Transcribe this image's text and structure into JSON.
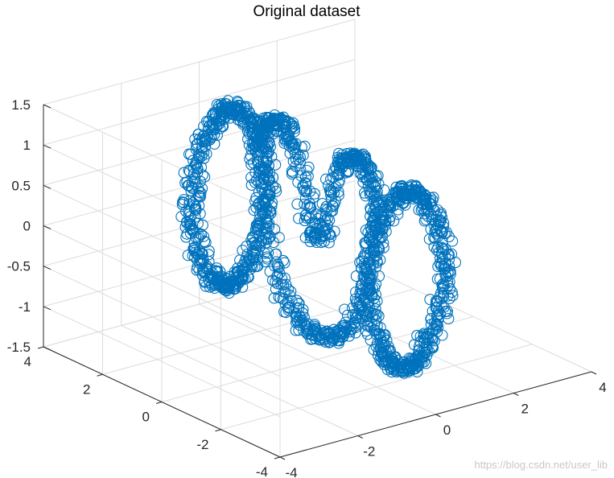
{
  "chart_data": {
    "type": "scatter",
    "title": "Original dataset",
    "marker": "open-circle",
    "color": "#0072BD",
    "xlim": [
      -4,
      4
    ],
    "ylim": [
      -4,
      4
    ],
    "zlim": [
      -1.5,
      1.5
    ],
    "x_ticks": [
      "-4",
      "-2",
      "0",
      "2",
      "4"
    ],
    "y_ticks": [
      "4",
      "2",
      "0",
      "-2",
      "-4"
    ],
    "z_ticks": [
      "1.5",
      "1",
      "0.5",
      "0",
      "-0.5",
      "-1",
      "-1.5"
    ],
    "grid": true,
    "series": [
      {
        "shape": "ring",
        "plane": "y",
        "points": [
          [
            -1.0,
            -3.0,
            0.0
          ],
          [
            -0.6,
            -3.0,
            0.8
          ],
          [
            0.0,
            -3.0,
            1.1
          ],
          [
            0.6,
            -3.0,
            0.8
          ],
          [
            1.0,
            -3.0,
            0.0
          ],
          [
            0.6,
            -3.0,
            -0.8
          ],
          [
            0.0,
            -3.0,
            -1.1
          ],
          [
            -0.6,
            -3.0,
            -0.8
          ]
        ]
      },
      {
        "shape": "ring",
        "plane": "y",
        "points": [
          [
            -1.0,
            3.0,
            0.0
          ],
          [
            -0.6,
            3.0,
            0.8
          ],
          [
            0.0,
            3.0,
            1.1
          ],
          [
            0.6,
            3.0,
            0.8
          ],
          [
            1.0,
            3.0,
            0.0
          ],
          [
            0.6,
            3.0,
            -0.8
          ],
          [
            0.0,
            3.0,
            -1.1
          ],
          [
            -0.6,
            3.0,
            -0.8
          ]
        ]
      },
      {
        "shape": "figure-eight",
        "plane": "x",
        "points": [
          [
            0.0,
            0.0,
            0.0
          ],
          [
            0.0,
            0.8,
            1.0
          ],
          [
            0.0,
            1.5,
            1.2
          ],
          [
            0.0,
            2.0,
            0.6
          ],
          [
            0.0,
            1.2,
            -0.8
          ],
          [
            0.0,
            0.0,
            -1.2
          ],
          [
            0.0,
            -1.2,
            -0.8
          ],
          [
            0.0,
            -2.0,
            0.6
          ],
          [
            0.0,
            -1.5,
            1.2
          ],
          [
            0.0,
            -0.8,
            1.0
          ]
        ]
      }
    ]
  },
  "watermark": "https://blog.csdn.net/user_lib"
}
